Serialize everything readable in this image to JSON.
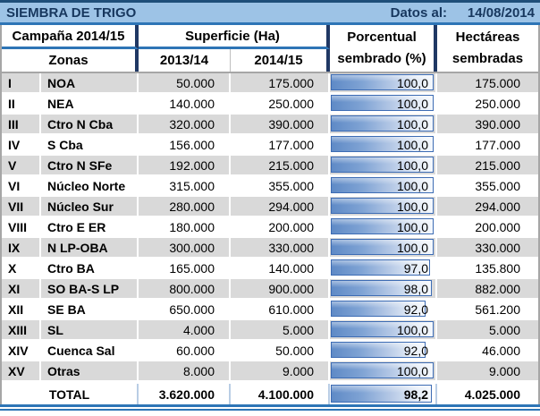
{
  "title_bar": {
    "title": "SIEMBRA DE TRIGO",
    "datos_label": "Datos al:",
    "date": "14/08/2014"
  },
  "header": {
    "campaign": "Campaña 2014/15",
    "superficie": "Superficie (Ha)",
    "porcentual_line1": "Porcentual",
    "porcentual_line2": "sembrado (%)",
    "hectareas_line1": "Hectáreas",
    "hectareas_line2": "sembradas",
    "zonas": "Zonas",
    "col_2013": "2013/14",
    "col_2014": "2014/15"
  },
  "colors": {
    "topbar_fill": "#9DC3E6",
    "topbar_top_border": "#1F4E79",
    "accent_line": "#2E75B6",
    "navy_border": "#203864",
    "row_alt": "#D9D9D9",
    "bar_border": "#3D6CB4",
    "bar_fill": "#5F8AC6"
  },
  "chart_data": {
    "type": "table",
    "title": "SIEMBRA DE TRIGO",
    "subtitle": "Campaña 2014/15 — Datos al: 14/08/2014",
    "columns": [
      "Zonas",
      "Superficie (Ha) 2013/14",
      "Superficie (Ha) 2014/15",
      "Porcentual sembrado (%)",
      "Hectáreas sembradas"
    ],
    "bar_column": {
      "label": "Porcentual sembrado (%)",
      "min": 0,
      "max": 100
    },
    "rows": [
      {
        "num": "I",
        "zone": "NOA",
        "s2013": "50.000",
        "s2014": "175.000",
        "pct": 100.0,
        "pct_label": "100,0",
        "ha": "175.000"
      },
      {
        "num": "II",
        "zone": "NEA",
        "s2013": "140.000",
        "s2014": "250.000",
        "pct": 100.0,
        "pct_label": "100,0",
        "ha": "250.000"
      },
      {
        "num": "III",
        "zone": "Ctro N Cba",
        "s2013": "320.000",
        "s2014": "390.000",
        "pct": 100.0,
        "pct_label": "100,0",
        "ha": "390.000"
      },
      {
        "num": "IV",
        "zone": "S Cba",
        "s2013": "156.000",
        "s2014": "177.000",
        "pct": 100.0,
        "pct_label": "100,0",
        "ha": "177.000"
      },
      {
        "num": "V",
        "zone": "Ctro N SFe",
        "s2013": "192.000",
        "s2014": "215.000",
        "pct": 100.0,
        "pct_label": "100,0",
        "ha": "215.000"
      },
      {
        "num": "VI",
        "zone": "Núcleo Norte",
        "s2013": "315.000",
        "s2014": "355.000",
        "pct": 100.0,
        "pct_label": "100,0",
        "ha": "355.000"
      },
      {
        "num": "VII",
        "zone": "Núcleo Sur",
        "s2013": "280.000",
        "s2014": "294.000",
        "pct": 100.0,
        "pct_label": "100,0",
        "ha": "294.000"
      },
      {
        "num": "VIII",
        "zone": "Ctro E ER",
        "s2013": "180.000",
        "s2014": "200.000",
        "pct": 100.0,
        "pct_label": "100,0",
        "ha": "200.000"
      },
      {
        "num": "IX",
        "zone": "N LP-OBA",
        "s2013": "300.000",
        "s2014": "330.000",
        "pct": 100.0,
        "pct_label": "100,0",
        "ha": "330.000"
      },
      {
        "num": "X",
        "zone": "Ctro BA",
        "s2013": "165.000",
        "s2014": "140.000",
        "pct": 97.0,
        "pct_label": "97,0",
        "ha": "135.800"
      },
      {
        "num": "XI",
        "zone": "SO BA-S LP",
        "s2013": "800.000",
        "s2014": "900.000",
        "pct": 98.0,
        "pct_label": "98,0",
        "ha": "882.000"
      },
      {
        "num": "XII",
        "zone": "SE BA",
        "s2013": "650.000",
        "s2014": "610.000",
        "pct": 92.0,
        "pct_label": "92,0",
        "ha": "561.200"
      },
      {
        "num": "XIII",
        "zone": "SL",
        "s2013": "4.000",
        "s2014": "5.000",
        "pct": 100.0,
        "pct_label": "100,0",
        "ha": "5.000"
      },
      {
        "num": "XIV",
        "zone": "Cuenca Sal",
        "s2013": "60.000",
        "s2014": "50.000",
        "pct": 92.0,
        "pct_label": "92,0",
        "ha": "46.000"
      },
      {
        "num": "XV",
        "zone": "Otras",
        "s2013": "8.000",
        "s2014": "9.000",
        "pct": 100.0,
        "pct_label": "100,0",
        "ha": "9.000"
      }
    ],
    "total": {
      "label": "TOTAL",
      "s2013": "3.620.000",
      "s2014": "4.100.000",
      "pct": 98.2,
      "pct_label": "98,2",
      "ha": "4.025.000"
    }
  }
}
